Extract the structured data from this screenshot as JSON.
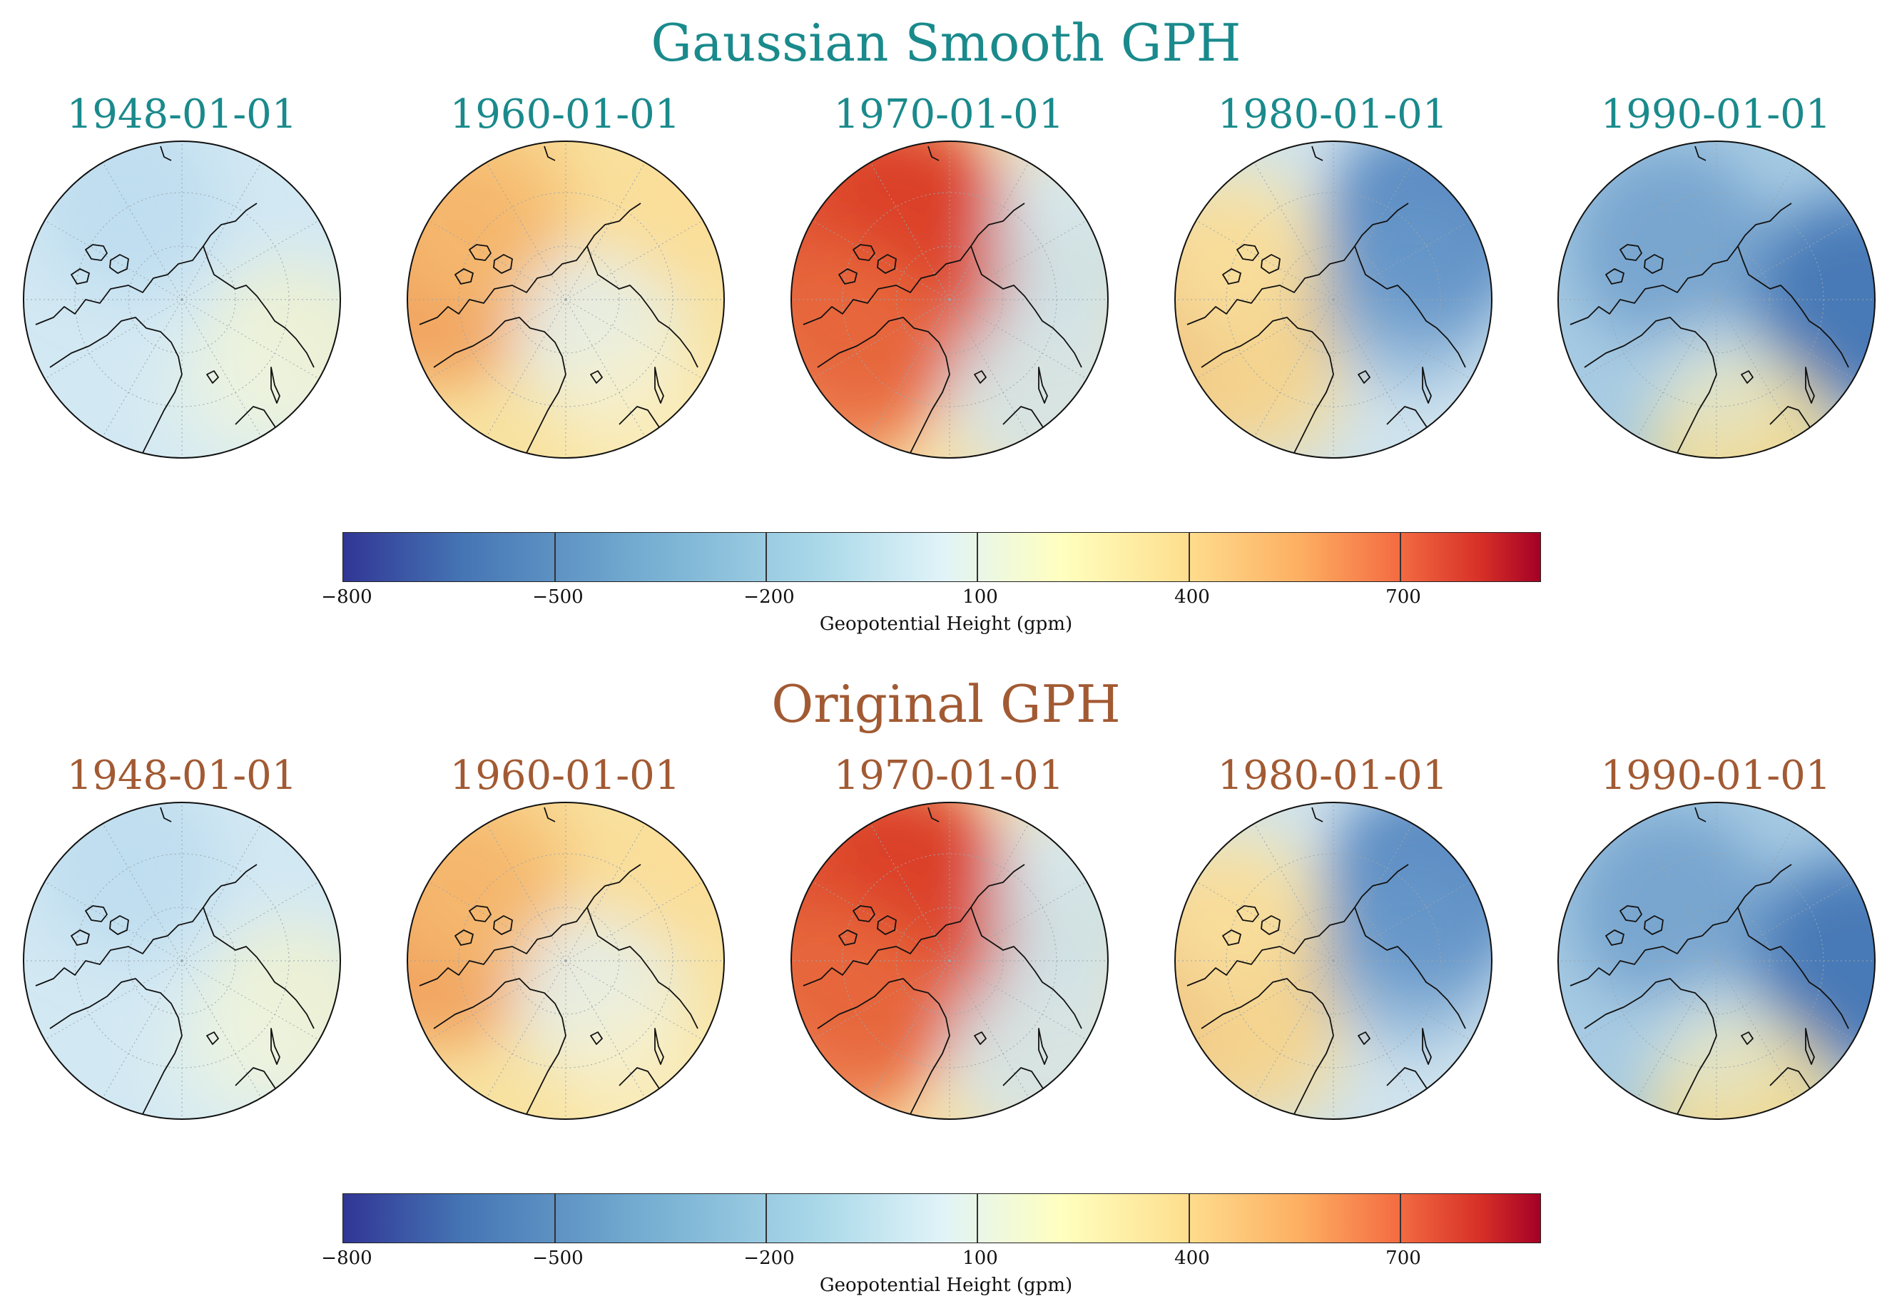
{
  "colors": {
    "teal": "#1a8a8c",
    "brown": "#a25a33"
  },
  "chart_data": [
    {
      "type": "heatmap",
      "title": "Gaussian Smooth GPH",
      "panels": [
        "1948-01-01",
        "1960-01-01",
        "1970-01-01",
        "1980-01-01",
        "1990-01-01"
      ],
      "colorbar": {
        "label": "Geopotential Height (gpm)",
        "range": [
          -800,
          900
        ],
        "ticks": [
          "−800",
          "−500",
          "−200",
          "100",
          "400",
          "700"
        ],
        "tick_values": [
          -800,
          -500,
          -200,
          100,
          400,
          700
        ]
      }
    },
    {
      "type": "heatmap",
      "title": "Original GPH",
      "panels": [
        "1948-01-01",
        "1960-01-01",
        "1970-01-01",
        "1980-01-01",
        "1990-01-01"
      ],
      "colorbar": {
        "label": "Geopotential Height (gpm)",
        "range": [
          -800,
          900
        ],
        "ticks": [
          "−800",
          "−500",
          "−200",
          "100",
          "400",
          "700"
        ],
        "tick_values": [
          -800,
          -500,
          -200,
          100,
          400,
          700
        ]
      }
    }
  ]
}
